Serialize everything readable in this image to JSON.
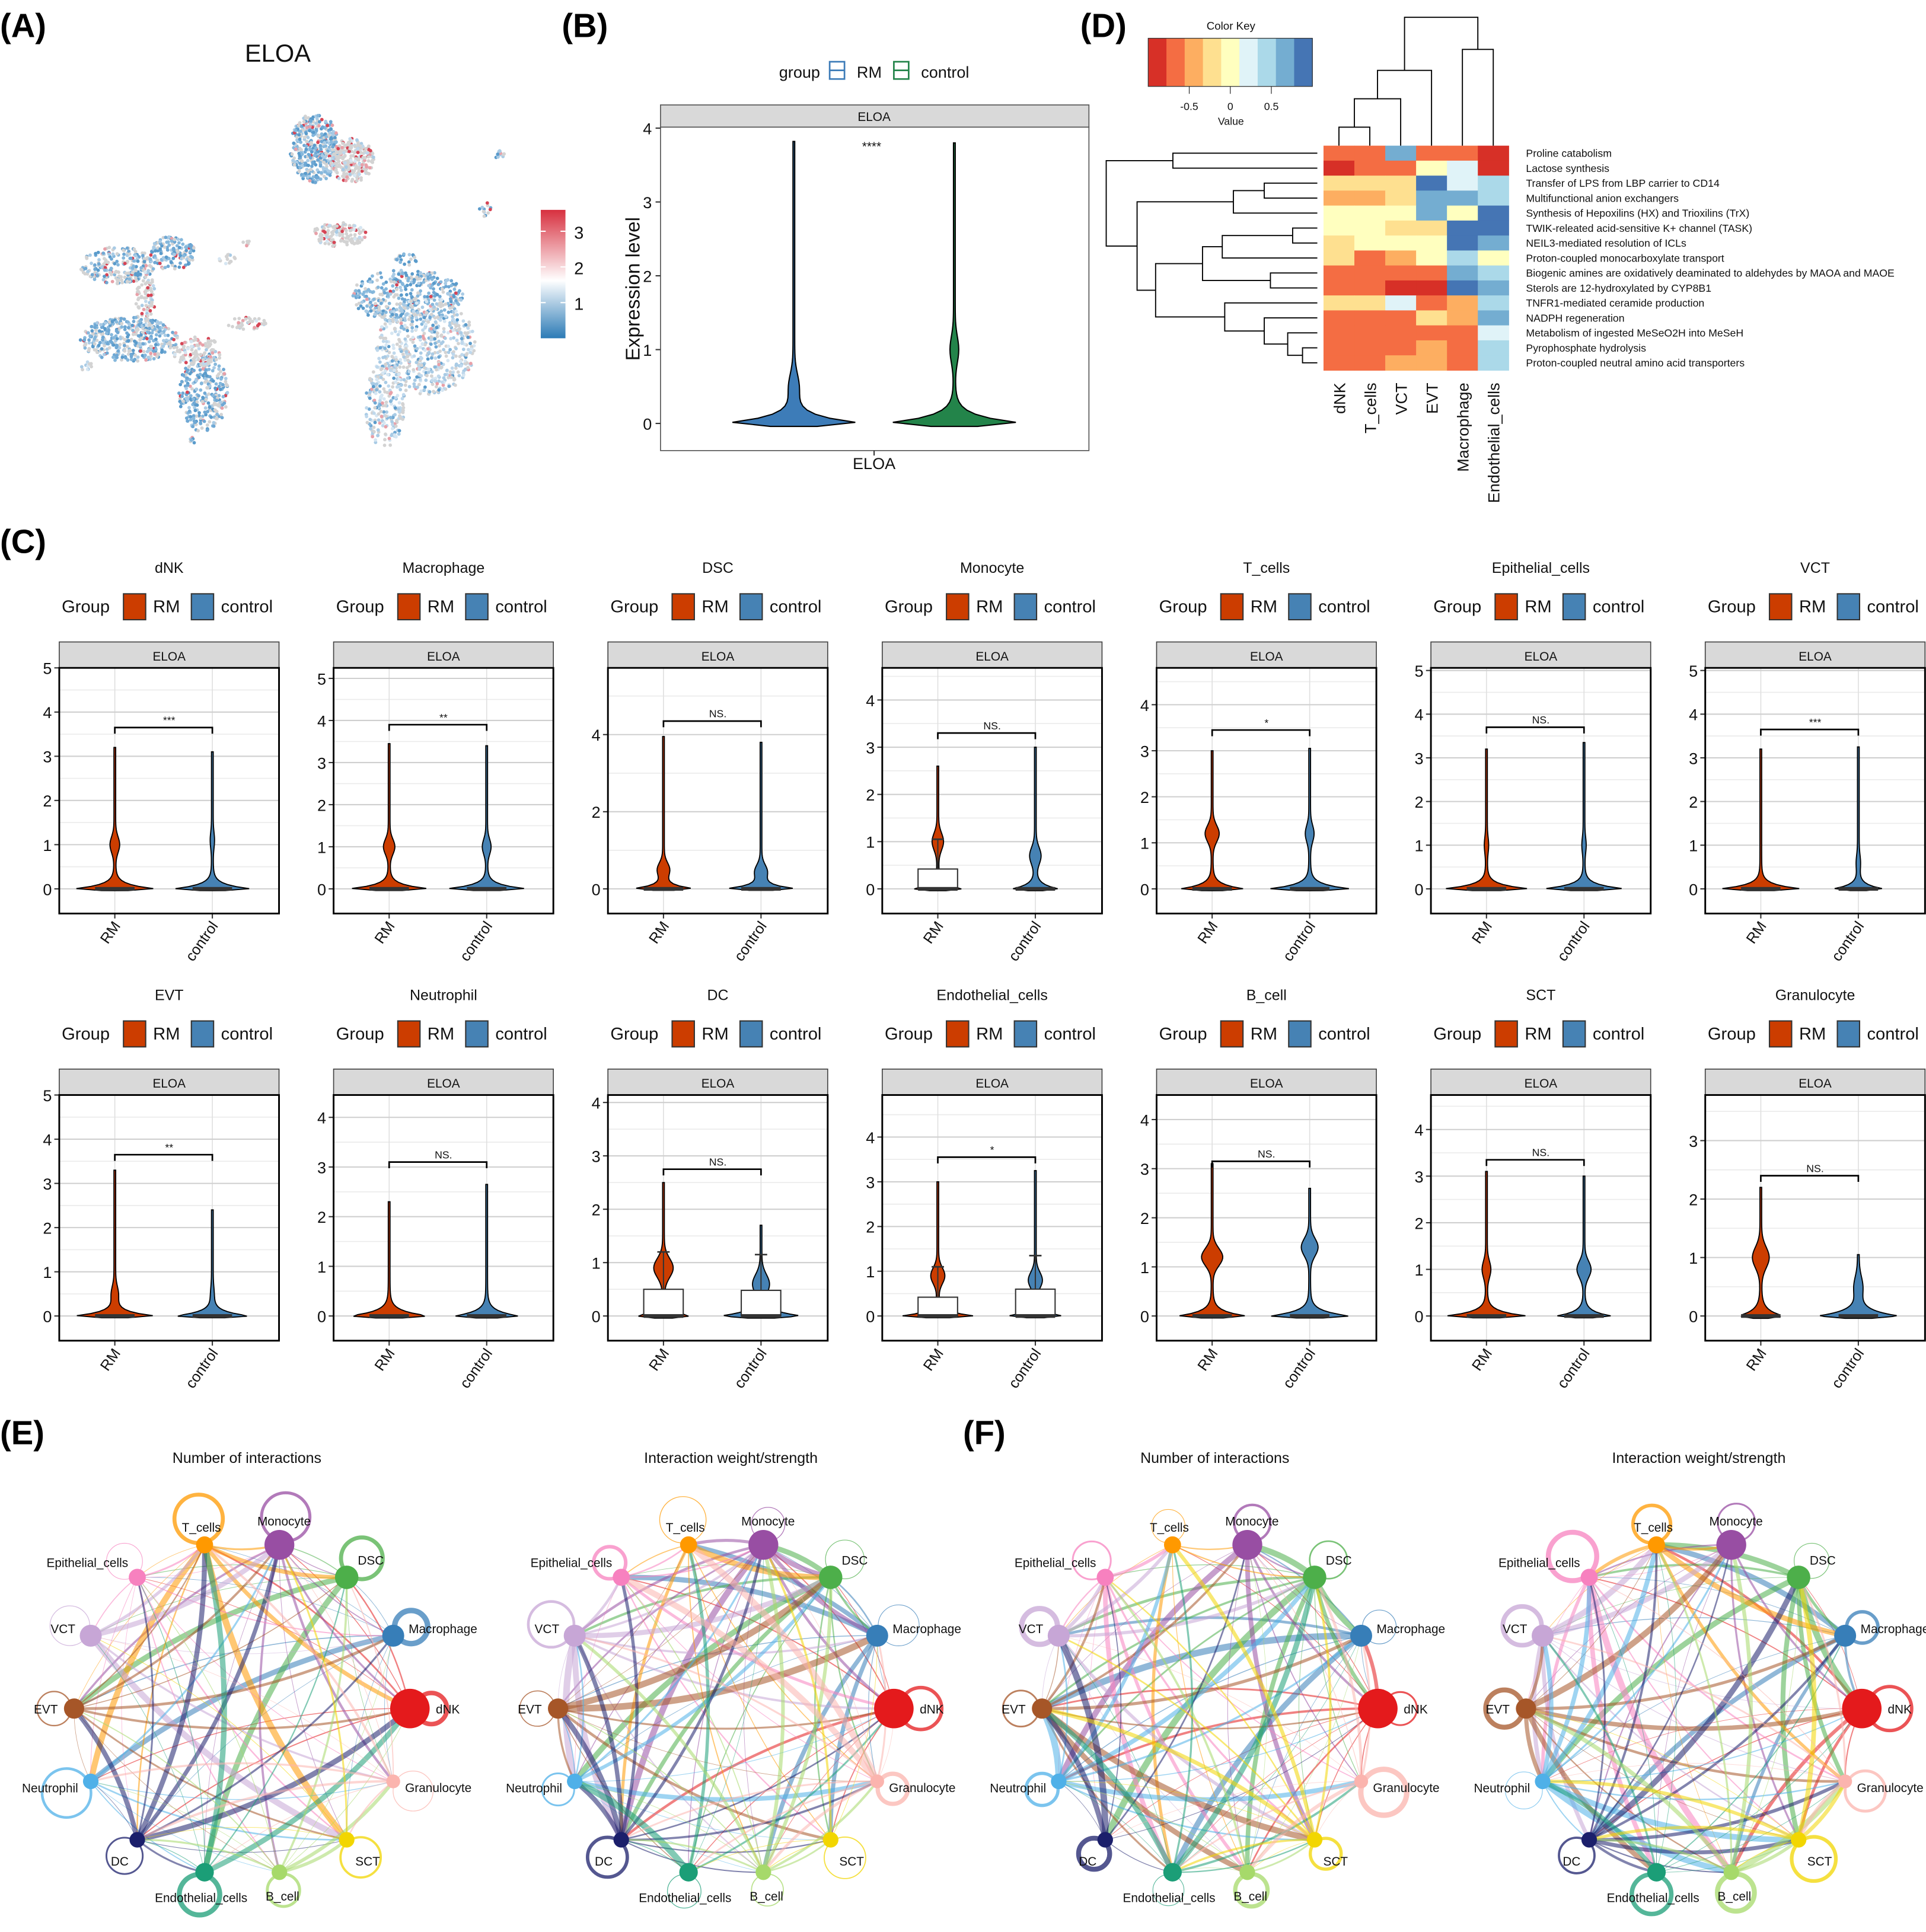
{
  "chart_data": [
    {
      "type": "scatter",
      "label": "(A)",
      "title": "ELOA",
      "colorbar": {
        "ticks": [
          "1",
          "2",
          "3"
        ],
        "tick_values": [
          1,
          2,
          3
        ],
        "range": [
          0,
          3.6
        ],
        "low_color": "#2C7BB6",
        "mid_color": "#FFFFFF",
        "high_color": "#D7303F"
      }
    },
    {
      "type": "violin",
      "label": "(B)",
      "legend_title": "group",
      "groups": [
        "RM",
        "control"
      ],
      "colors": [
        "#3D7CB8",
        "#23844A"
      ],
      "strip": "ELOA",
      "ylabel": "Expression level",
      "xlabel": "ELOA",
      "yticks": [
        "0",
        "1",
        "2",
        "3",
        "4"
      ],
      "ylim": [
        -0.15,
        4.2
      ],
      "significance": "****",
      "series": [
        {
          "name": "RM",
          "max": 3.82,
          "base": 1.0,
          "bulge_at": 0.5,
          "bulge": 0.06
        },
        {
          "name": "control",
          "max": 3.8,
          "base": 1.0,
          "bulge_at": 1.0,
          "bulge": 0.05
        }
      ]
    },
    {
      "type": "heatmap",
      "label": "(D)",
      "key_title": "Color Key",
      "key_ticks": [
        "-0.5",
        "0",
        "0.5"
      ],
      "key_tick_values": [
        -0.5,
        0,
        0.5
      ],
      "key_label": "Value",
      "range": [
        -1,
        1
      ],
      "palette": [
        "#D73027",
        "#F46D43",
        "#FDAE61",
        "#FEE090",
        "#FFFFBF",
        "#E0F3F8",
        "#ABD9E9",
        "#74ADD1",
        "#4575B4"
      ],
      "columns": [
        "dNK",
        "T_cells",
        "VCT",
        "EVT",
        "Macrophage",
        "Endothelial_cells"
      ],
      "rows": [
        "Proline catabolism",
        "Lactose synthesis",
        "Transfer of LPS from LBP carrier to CD14",
        "Multifunctional anion exchangers",
        "Synthesis of Hepoxilins (HX) and Trioxilins (TrX)",
        "TWIK-releated acid-sensitive K+ channel (TASK)",
        "NEIL3-mediated resolution of ICLs",
        "Proton-coupled monocarboxylate transport",
        "Biogenic amines are oxidatively deaminated to aldehydes by MAOA and MAOE",
        "Sterols are 12-hydroxylated by CYP8B1",
        "TNFR1-mediated ceramide production",
        "NADPH regeneration",
        "Metabolism of ingested MeSeO2H into MeSeH",
        "Pyrophosphate hydrolysis",
        "Proton-coupled neutral amino acid transporters"
      ],
      "values": [
        [
          -0.7,
          -0.7,
          0.6,
          -0.7,
          -0.7,
          -0.9
        ],
        [
          -0.9,
          -0.7,
          -0.7,
          -0.1,
          0.15,
          -0.9
        ],
        [
          -0.3,
          -0.3,
          -0.3,
          0.85,
          0.15,
          0.35
        ],
        [
          -0.5,
          -0.5,
          -0.3,
          0.6,
          0.6,
          0.35
        ],
        [
          -0.1,
          -0.1,
          -0.1,
          0.6,
          -0.1,
          0.85
        ],
        [
          -0.1,
          -0.1,
          -0.3,
          -0.3,
          0.85,
          0.85
        ],
        [
          -0.3,
          -0.1,
          -0.1,
          -0.1,
          0.85,
          0.6
        ],
        [
          -0.3,
          -0.7,
          -0.5,
          -0.1,
          0.35,
          -0.1
        ],
        [
          -0.7,
          -0.7,
          -0.7,
          -0.7,
          0.6,
          0.35
        ],
        [
          -0.7,
          -0.7,
          -0.9,
          -0.9,
          0.85,
          0.6
        ],
        [
          -0.3,
          -0.3,
          0.15,
          -0.7,
          -0.5,
          0.35
        ],
        [
          -0.7,
          -0.7,
          -0.7,
          -0.3,
          -0.5,
          0.6
        ],
        [
          -0.7,
          -0.7,
          -0.7,
          -0.7,
          -0.7,
          0.15
        ],
        [
          -0.7,
          -0.7,
          -0.7,
          -0.5,
          -0.7,
          0.35
        ],
        [
          -0.7,
          -0.7,
          -0.5,
          -0.5,
          -0.7,
          0.35
        ]
      ]
    },
    {
      "type": "violin",
      "label": "(C)",
      "legend_title": "Group",
      "groups": [
        "RM",
        "control"
      ],
      "colors": [
        "#CC3D00",
        "#4682B4"
      ],
      "strip": "ELOA",
      "panels": [
        {
          "title": "dNK",
          "ymax": 5.0,
          "yticks": [
            "0",
            "1",
            "2",
            "3",
            "4",
            "5"
          ],
          "significance": "***",
          "bracket": 3.65,
          "RM": {
            "max": 3.2,
            "base": 0.9,
            "bulge_at": 1.0,
            "bulge": 0.09
          },
          "control": {
            "max": 3.1,
            "base": 0.85,
            "bulge_at": 1.1,
            "bulge": 0.03
          }
        },
        {
          "title": "Macrophage",
          "ymax": 5.25,
          "yticks": [
            "0",
            "1",
            "2",
            "3",
            "4",
            "5"
          ],
          "significance": "**",
          "bracket": 3.9,
          "RM": {
            "max": 3.45,
            "base": 0.9,
            "bulge_at": 1.0,
            "bulge": 0.11
          },
          "control": {
            "max": 3.4,
            "base": 0.9,
            "bulge_at": 1.0,
            "bulge": 0.08
          }
        },
        {
          "title": "DSC",
          "ymax": 5.73,
          "yticks": [
            "0",
            "2",
            "4"
          ],
          "significance": "NS.",
          "bracket": 4.35,
          "RM": {
            "max": 3.95,
            "base": 0.7,
            "bulge_at": 0.5,
            "bulge": 0.12
          },
          "control": {
            "max": 3.8,
            "base": 0.8,
            "bulge_at": 0.45,
            "bulge": 0.12
          }
        },
        {
          "title": "Monocyte",
          "ymax": 4.68,
          "yticks": [
            "0",
            "1",
            "2",
            "3",
            "4"
          ],
          "significance": "NS.",
          "bracket": 3.3,
          "RM": {
            "max": 2.6,
            "base": 0.55,
            "bulge_at": 1.0,
            "bulge": 0.11,
            "box_q3": 0.42,
            "whisker": 1.05
          },
          "control": {
            "max": 3.0,
            "base": 0.5,
            "bulge_at": 0.7,
            "bulge": 0.11
          }
        },
        {
          "title": "T_cells",
          "ymax": 4.8,
          "yticks": [
            "0",
            "1",
            "2",
            "3",
            "4"
          ],
          "significance": "*",
          "bracket": 3.45,
          "RM": {
            "max": 3.0,
            "base": 0.7,
            "bulge_at": 1.2,
            "bulge": 0.14
          },
          "control": {
            "max": 3.05,
            "base": 0.9,
            "bulge_at": 1.2,
            "bulge": 0.08
          }
        },
        {
          "title": "Epithelial_cells",
          "ymax": 5.06,
          "yticks": [
            "0",
            "1",
            "2",
            "3",
            "4",
            "5"
          ],
          "significance": "NS.",
          "bracket": 3.7,
          "RM": {
            "max": 3.2,
            "base": 0.95,
            "bulge_at": 1.0,
            "bulge": 0.03
          },
          "control": {
            "max": 3.35,
            "base": 0.9,
            "bulge_at": 1.0,
            "bulge": 0.03
          }
        },
        {
          "title": "VCT",
          "ymax": 5.06,
          "yticks": [
            "0",
            "1",
            "2",
            "3",
            "4",
            "5"
          ],
          "significance": "***",
          "bracket": 3.65,
          "RM": {
            "max": 3.2,
            "base": 0.9,
            "bulge_at": 0.5,
            "bulge": 0.0
          },
          "control": {
            "max": 3.25,
            "base": 0.55,
            "bulge_at": 0.6,
            "bulge": 0.03
          }
        },
        {
          "title": "EVT",
          "ymax": 5.0,
          "yticks": [
            "0",
            "1",
            "2",
            "3",
            "4",
            "5"
          ],
          "significance": "**",
          "bracket": 3.65,
          "RM": {
            "max": 3.3,
            "base": 0.9,
            "bulge_at": 0.5,
            "bulge": 0.06
          },
          "control": {
            "max": 2.4,
            "base": 0.85,
            "bulge_at": 0.5,
            "bulge": 0.02
          }
        },
        {
          "title": "Neutrophil",
          "ymax": 4.45,
          "yticks": [
            "0",
            "1",
            "2",
            "3",
            "4"
          ],
          "significance": "NS.",
          "bracket": 3.1,
          "RM": {
            "max": 2.3,
            "base": 0.9,
            "bulge_at": 0.0,
            "bulge": 0.0
          },
          "control": {
            "max": 2.65,
            "base": 0.72,
            "bulge_at": 0.0,
            "bulge": 0.0
          }
        },
        {
          "title": "DC",
          "ymax": 4.14,
          "yticks": [
            "0",
            "1",
            "2",
            "3",
            "4"
          ],
          "significance": "NS.",
          "bracket": 2.75,
          "RM": {
            "max": 2.5,
            "base": 0.6,
            "bulge_at": 0.9,
            "bulge": 0.2,
            "box_q3": 0.5,
            "whisker": 1.2
          },
          "control": {
            "max": 1.7,
            "base": 0.9,
            "bulge_at": 0.6,
            "bulge": 0.17,
            "box_q3": 0.48,
            "whisker": 1.15
          }
        },
        {
          "title": "Endothelial_cells",
          "ymax": 4.94,
          "yticks": [
            "0",
            "1",
            "2",
            "3",
            "4"
          ],
          "significance": "*",
          "bracket": 3.55,
          "RM": {
            "max": 3.0,
            "base": 0.8,
            "bulge_at": 0.9,
            "bulge": 0.14,
            "box_q3": 0.42,
            "whisker": 1.1
          },
          "control": {
            "max": 3.25,
            "base": 0.6,
            "bulge_at": 0.8,
            "bulge": 0.14,
            "box_q3": 0.6,
            "whisker": 1.35
          }
        },
        {
          "title": "B_cell",
          "ymax": 4.5,
          "yticks": [
            "0",
            "1",
            "2",
            "3",
            "4"
          ],
          "significance": "NS.",
          "bracket": 3.15,
          "RM": {
            "max": 3.1,
            "base": 0.75,
            "bulge_at": 1.2,
            "bulge": 0.22
          },
          "control": {
            "max": 2.6,
            "base": 0.9,
            "bulge_at": 1.4,
            "bulge": 0.17
          }
        },
        {
          "title": "SCT",
          "ymax": 4.74,
          "yticks": [
            "0",
            "1",
            "2",
            "3",
            "4"
          ],
          "significance": "NS.",
          "bracket": 3.35,
          "RM": {
            "max": 3.1,
            "base": 0.9,
            "bulge_at": 1.0,
            "bulge": 0.08
          },
          "control": {
            "max": 3.0,
            "base": 0.6,
            "bulge_at": 1.0,
            "bulge": 0.14
          }
        },
        {
          "title": "Granulocyte",
          "ymax": 3.78,
          "yticks": [
            "0",
            "1",
            "2",
            "3"
          ],
          "significance": "NS.",
          "bracket": 2.4,
          "RM": {
            "max": 2.2,
            "base": 0.5,
            "bulge_at": 1.0,
            "bulge": 0.17
          },
          "control": {
            "max": 1.05,
            "base": 0.9,
            "bulge_at": 0.5,
            "bulge": 0.08
          }
        }
      ]
    },
    {
      "type": "network",
      "label": "(E)",
      "subplots": [
        {
          "title": "Number of interactions"
        },
        {
          "title": "Interaction weight/strength"
        }
      ],
      "nodes": [
        {
          "name": "dNK",
          "color": "#E41A1C",
          "size": 1.0
        },
        {
          "name": "Macrophage",
          "color": "#377EB8",
          "size": 0.45
        },
        {
          "name": "DSC",
          "color": "#4DAF4A",
          "size": 0.5
        },
        {
          "name": "Monocyte",
          "color": "#984EA3",
          "size": 0.7
        },
        {
          "name": "T_cells",
          "color": "#FF9900",
          "size": 0.3
        },
        {
          "name": "Epithelial_cells",
          "color": "#F781BF",
          "size": 0.3
        },
        {
          "name": "VCT",
          "color": "#C7A6D6",
          "size": 0.45
        },
        {
          "name": "EVT",
          "color": "#A65628",
          "size": 0.4
        },
        {
          "name": "Neutrophil",
          "color": "#4FB0E8",
          "size": 0.25
        },
        {
          "name": "DC",
          "color": "#1B1F6B",
          "size": 0.25
        },
        {
          "name": "Endothelial_cells",
          "color": "#1B9E77",
          "size": 0.35
        },
        {
          "name": "B_cell",
          "color": "#A6D96A",
          "size": 0.25
        },
        {
          "name": "SCT",
          "color": "#F2D600",
          "size": 0.25
        },
        {
          "name": "Granulocyte",
          "color": "#FBB4AE",
          "size": 0.2
        }
      ]
    },
    {
      "type": "network",
      "label": "(F)",
      "subplots": [
        {
          "title": "Number of interactions"
        },
        {
          "title": "Interaction weight/strength"
        }
      ]
    }
  ]
}
